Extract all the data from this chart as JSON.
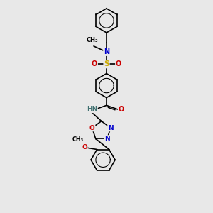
{
  "bg_color": "#e8e8e8",
  "atom_colors": {
    "C": "#000000",
    "N": "#0000cc",
    "O": "#cc0000",
    "S": "#ccaa00",
    "H": "#407070"
  },
  "bond_color": "#000000",
  "bond_width": 1.2,
  "figsize": [
    3.0,
    3.0
  ],
  "dpi": 100,
  "xlim": [
    -1.5,
    1.5
  ],
  "ylim": [
    -4.5,
    4.5
  ]
}
